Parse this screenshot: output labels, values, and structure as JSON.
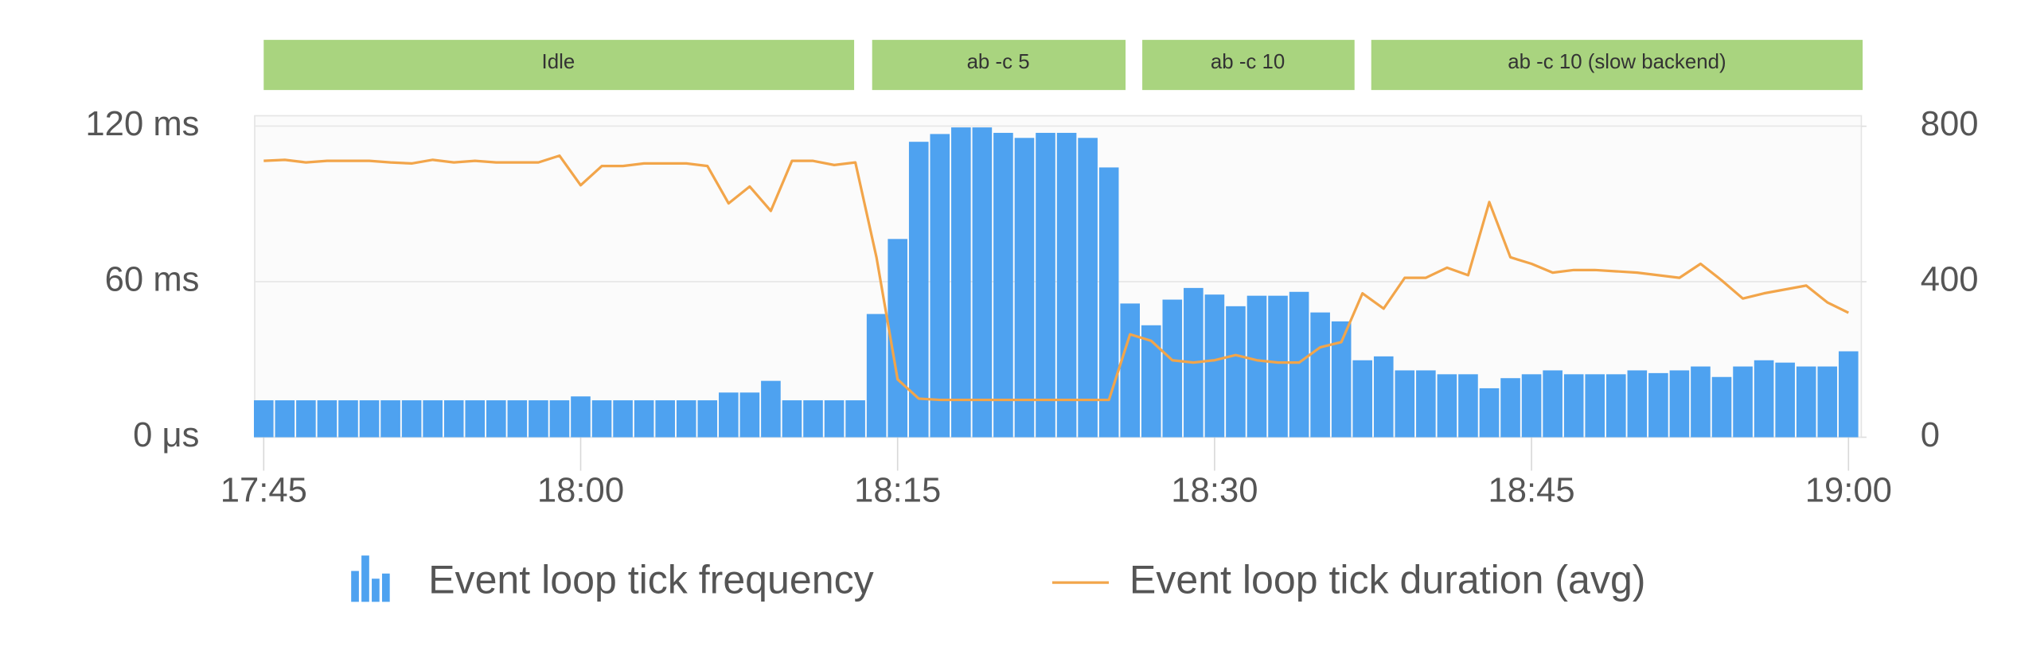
{
  "chart_data": {
    "type": "combo",
    "annotations": [
      "Idle",
      "ab -c 5",
      "ab -c 10",
      "ab -c 10 (slow backend)"
    ],
    "x": [
      "17:45",
      "17:46",
      "17:47",
      "17:48",
      "17:49",
      "17:50",
      "17:51",
      "17:52",
      "17:53",
      "17:54",
      "17:55",
      "17:56",
      "17:57",
      "17:58",
      "17:59",
      "18:00",
      "18:01",
      "18:02",
      "18:03",
      "18:04",
      "18:05",
      "18:06",
      "18:07",
      "18:08",
      "18:09",
      "18:10",
      "18:11",
      "18:12",
      "18:13",
      "18:14",
      "18:15",
      "18:16",
      "18:17",
      "18:18",
      "18:19",
      "18:20",
      "18:21",
      "18:22",
      "18:23",
      "18:24",
      "18:25",
      "18:26",
      "18:27",
      "18:28",
      "18:29",
      "18:30",
      "18:31",
      "18:32",
      "18:33",
      "18:34",
      "18:35",
      "18:36",
      "18:37",
      "18:38",
      "18:39",
      "18:40",
      "18:41",
      "18:42",
      "18:43",
      "18:44",
      "18:45",
      "18:46",
      "18:47",
      "18:48",
      "18:49",
      "18:50",
      "18:51",
      "18:52",
      "18:53",
      "18:54",
      "18:55",
      "18:56",
      "18:57",
      "18:58",
      "18:59",
      "19:00"
    ],
    "xlim": [
      "17:45",
      "19:00"
    ],
    "xticks": [
      "17:45",
      "18:00",
      "18:15",
      "18:30",
      "18:45",
      "19:00"
    ],
    "ylim": [
      0,
      124
    ],
    "yticks": [
      {
        "value": 0,
        "label": "0 μs"
      },
      {
        "value": 60,
        "label": "60 ms"
      },
      {
        "value": 120,
        "label": "120 ms"
      }
    ],
    "y2lim": [
      0,
      827
    ],
    "y2ticks": [
      0,
      400,
      800
    ],
    "grid": true,
    "legend": "bottom",
    "series": [
      {
        "name": "Event loop tick frequency",
        "kind": "bar",
        "axis": "y2",
        "color": "#4ea2f0",
        "values": [
          95,
          95,
          95,
          95,
          95,
          95,
          95,
          95,
          95,
          95,
          95,
          95,
          95,
          95,
          95,
          105,
          95,
          95,
          95,
          95,
          95,
          95,
          115,
          115,
          145,
          95,
          95,
          95,
          95,
          317,
          510,
          760,
          780,
          797,
          797,
          783,
          770,
          783,
          783,
          770,
          694,
          344,
          288,
          354,
          384,
          367,
          337,
          364,
          364,
          374,
          321,
          298,
          198,
          208,
          172,
          172,
          162,
          162,
          126,
          152,
          162,
          172,
          162,
          162,
          162,
          172,
          165,
          172,
          182,
          155,
          182,
          198,
          192,
          182,
          182,
          221
        ]
      },
      {
        "name": "Event loop tick duration (avg)",
        "kind": "line",
        "axis": "y",
        "color": "#f2a54a",
        "values": [
          106.6,
          107,
          106,
          106.6,
          106.6,
          106.6,
          106,
          105.6,
          107,
          106,
          106.6,
          106,
          106,
          106,
          108.6,
          97.2,
          104.6,
          104.6,
          105.6,
          105.6,
          105.6,
          104.6,
          90.2,
          96.7,
          87.3,
          106.6,
          106.6,
          105,
          106,
          69.4,
          22.3,
          14.9,
          14.4,
          14.4,
          14.4,
          14.4,
          14.4,
          14.4,
          14.4,
          14.4,
          14.4,
          39.7,
          37.2,
          29.7,
          28.8,
          29.7,
          31.7,
          29.7,
          28.8,
          28.8,
          34.7,
          36.7,
          55.5,
          49.6,
          61.5,
          61.5,
          65.4,
          62.5,
          90.7,
          69.4,
          66.9,
          63.5,
          64.5,
          64.5,
          64,
          63.5,
          62.5,
          61.5,
          66.9,
          60.5,
          53.5,
          55.5,
          57,
          58.5,
          52,
          48
        ]
      }
    ]
  }
}
